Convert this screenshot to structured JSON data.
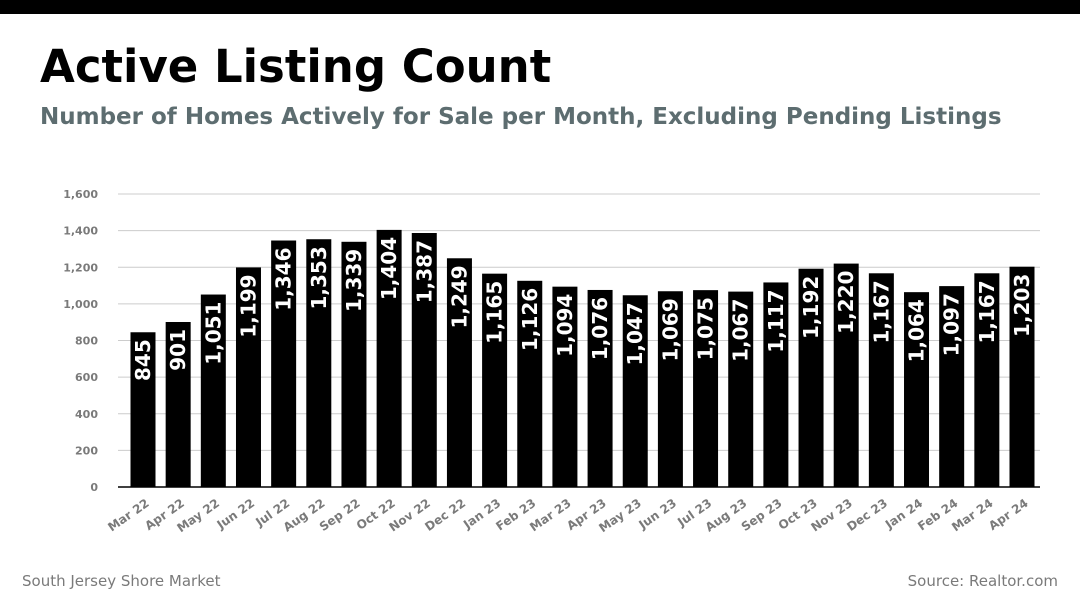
{
  "header": {
    "title": "Active Listing Count",
    "subtitle": "Number of Homes Actively for Sale per Month, Excluding Pending Listings"
  },
  "footer": {
    "left": "South Jersey Shore Market",
    "right": "Source: Realtor.com"
  },
  "colors": {
    "bar": "#000000",
    "label": "#ffffff",
    "subtitle": "#5d6d70",
    "grid": "#cccccc",
    "axis_text": "#7a7a7a"
  },
  "chart_data": {
    "type": "bar",
    "title": "Active Listing Count",
    "subtitle": "Number of Homes Actively for Sale per Month, Excluding Pending Listings",
    "xlabel": "",
    "ylabel": "",
    "ylim": [
      0,
      1600
    ],
    "yticks": [
      "0",
      "200",
      "400",
      "600",
      "800",
      "1,000",
      "1,200",
      "1,400",
      "1,600"
    ],
    "grid": true,
    "categories": [
      "Mar 22",
      "Apr 22",
      "May 22",
      "Jun 22",
      "Jul 22",
      "Aug 22",
      "Sep 22",
      "Oct 22",
      "Nov 22",
      "Dec 22",
      "Jan 23",
      "Feb 23",
      "Mar 23",
      "Apr 23",
      "May 23",
      "Jun 23",
      "Jul 23",
      "Aug 23",
      "Sep 23",
      "Oct 23",
      "Nov 23",
      "Dec 23",
      "Jan 24",
      "Feb 24",
      "Mar 24",
      "Apr 24"
    ],
    "values": [
      845,
      901,
      1051,
      1199,
      1346,
      1353,
      1339,
      1404,
      1387,
      1249,
      1165,
      1126,
      1094,
      1076,
      1047,
      1069,
      1075,
      1067,
      1117,
      1192,
      1220,
      1167,
      1064,
      1097,
      1167,
      1203
    ],
    "data_labels": [
      "845",
      "901",
      "1,051",
      "1,199",
      "1,346",
      "1,353",
      "1,339",
      "1,404",
      "1,387",
      "1,249",
      "1,165",
      "1,126",
      "1,094",
      "1,076",
      "1,047",
      "1,069",
      "1,075",
      "1,067",
      "1,117",
      "1,192",
      "1,220",
      "1,167",
      "1,064",
      "1,097",
      "1,167",
      "1,203"
    ]
  }
}
